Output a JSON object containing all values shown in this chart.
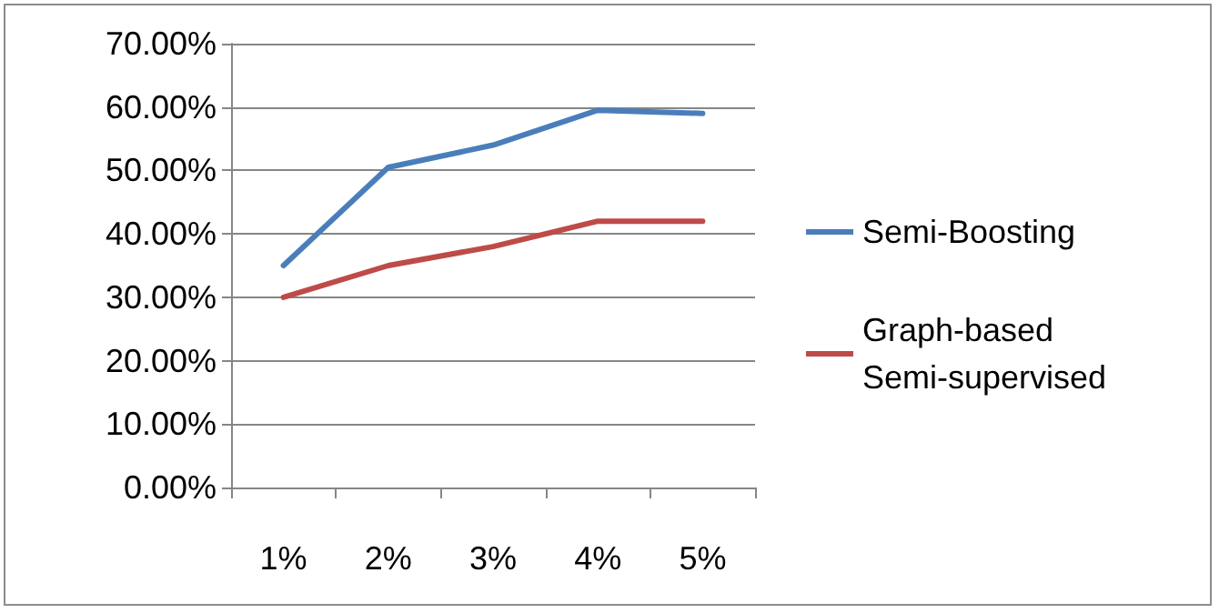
{
  "chart_data": {
    "type": "line",
    "categories": [
      "1%",
      "2%",
      "3%",
      "4%",
      "5%"
    ],
    "series": [
      {
        "name": "Semi-Boosting",
        "color": "#4a7ebb",
        "values": [
          35,
          50.5,
          54,
          59.5,
          59
        ]
      },
      {
        "name": "Graph-based Semi-supervised",
        "color": "#be4b48",
        "values": [
          30,
          35,
          38,
          42,
          42
        ]
      }
    ],
    "ylim": [
      0,
      70
    ],
    "yticks": [
      {
        "value": 0,
        "label": "0.00%"
      },
      {
        "value": 10,
        "label": "10.00%"
      },
      {
        "value": 20,
        "label": "20.00%"
      },
      {
        "value": 30,
        "label": "30.00%"
      },
      {
        "value": 40,
        "label": "40.00%"
      },
      {
        "value": 50,
        "label": "50.00%"
      },
      {
        "value": 60,
        "label": "60.00%"
      },
      {
        "value": 70,
        "label": "70.00%"
      }
    ],
    "grid": "y",
    "legend": "right",
    "marker": "none",
    "line_style": "solid"
  }
}
